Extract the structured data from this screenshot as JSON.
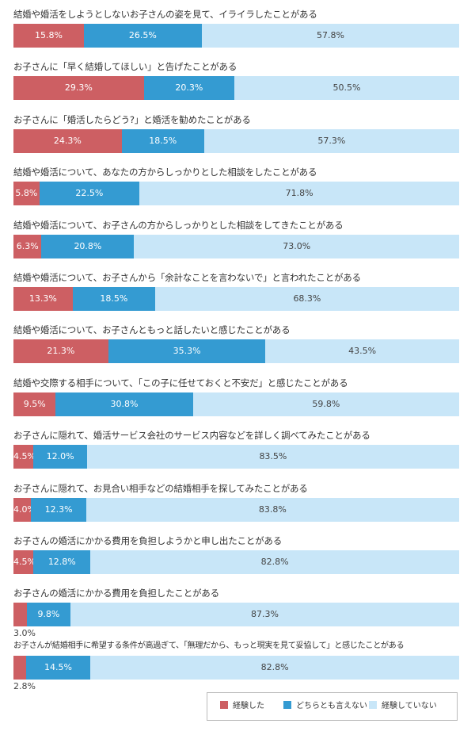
{
  "colors": {
    "experienced": "#cd5f63",
    "neither": "#349bd2",
    "not_experienced": "#c8e6f8"
  },
  "chart_data": {
    "type": "bar",
    "orientation": "horizontal",
    "stacked": true,
    "unit": "%",
    "legend_position": "bottom-right",
    "series_names": [
      "経験した",
      "どちらとも言えない",
      "経験していない"
    ],
    "categories": [
      "結婚や婚活をしようとしないお子さんの姿を見て、イライラしたことがある",
      "お子さんに「早く結婚してほしい」と告げたことがある",
      "お子さんに「婚活したらどう?」と婚活を勧めたことがある",
      "結婚や婚活について、あなたの方からしっかりとした相談をしたことがある",
      "結婚や婚活について、お子さんの方からしっかりとした相談をしてきたことがある",
      "結婚や婚活について、お子さんから「余計なことを言わないで」と言われたことがある",
      "結婚や婚活について、お子さんともっと話したいと感じたことがある",
      "結婚や交際する相手について、「この子に任せておくと不安だ」と感じたことがある",
      "お子さんに隠れて、婚活サービス会社のサービス内容などを詳しく調べてみたことがある",
      "お子さんに隠れて、お見合い相手などの結婚相手を探してみたことがある",
      "お子さんの婚活にかかる費用を負担しようかと申し出たことがある",
      "お子さんの婚活にかかる費用を負担したことがある",
      "お子さんが結婚相手に希望する条件が高過ぎて、「無理だから、もっと現実を見て妥協して」と感じたことがある"
    ],
    "series": [
      {
        "name": "経験した",
        "values": [
          15.8,
          29.3,
          24.3,
          5.8,
          6.3,
          13.3,
          21.3,
          9.5,
          4.5,
          4.0,
          4.5,
          3.0,
          2.8
        ]
      },
      {
        "name": "どちらとも言えない",
        "values": [
          26.5,
          20.3,
          18.5,
          22.5,
          20.8,
          18.5,
          35.3,
          30.8,
          12.0,
          12.3,
          12.8,
          9.8,
          14.5
        ]
      },
      {
        "name": "経験していない",
        "values": [
          57.8,
          50.5,
          57.3,
          71.8,
          73.0,
          68.3,
          43.5,
          59.8,
          83.5,
          83.8,
          82.8,
          87.3,
          82.8
        ]
      }
    ],
    "labels": [
      [
        "15.8%",
        "26.5%",
        "57.8%"
      ],
      [
        "29.3%",
        "20.3%",
        "50.5%"
      ],
      [
        "24.3%",
        "18.5%",
        "57.3%"
      ],
      [
        "5.8%",
        "22.5%",
        "71.8%"
      ],
      [
        "6.3%",
        "20.8%",
        "73.0%"
      ],
      [
        "13.3%",
        "18.5%",
        "68.3%"
      ],
      [
        "21.3%",
        "35.3%",
        "43.5%"
      ],
      [
        "9.5%",
        "30.8%",
        "59.8%"
      ],
      [
        "4.5%",
        "12.0%",
        "83.5%"
      ],
      [
        "4.0%",
        "12.3%",
        "83.8%"
      ],
      [
        "4.5%",
        "12.8%",
        "82.8%"
      ],
      [
        "3.0%",
        "9.8%",
        "87.3%"
      ],
      [
        "2.8%",
        "14.5%",
        "82.8%"
      ]
    ]
  }
}
